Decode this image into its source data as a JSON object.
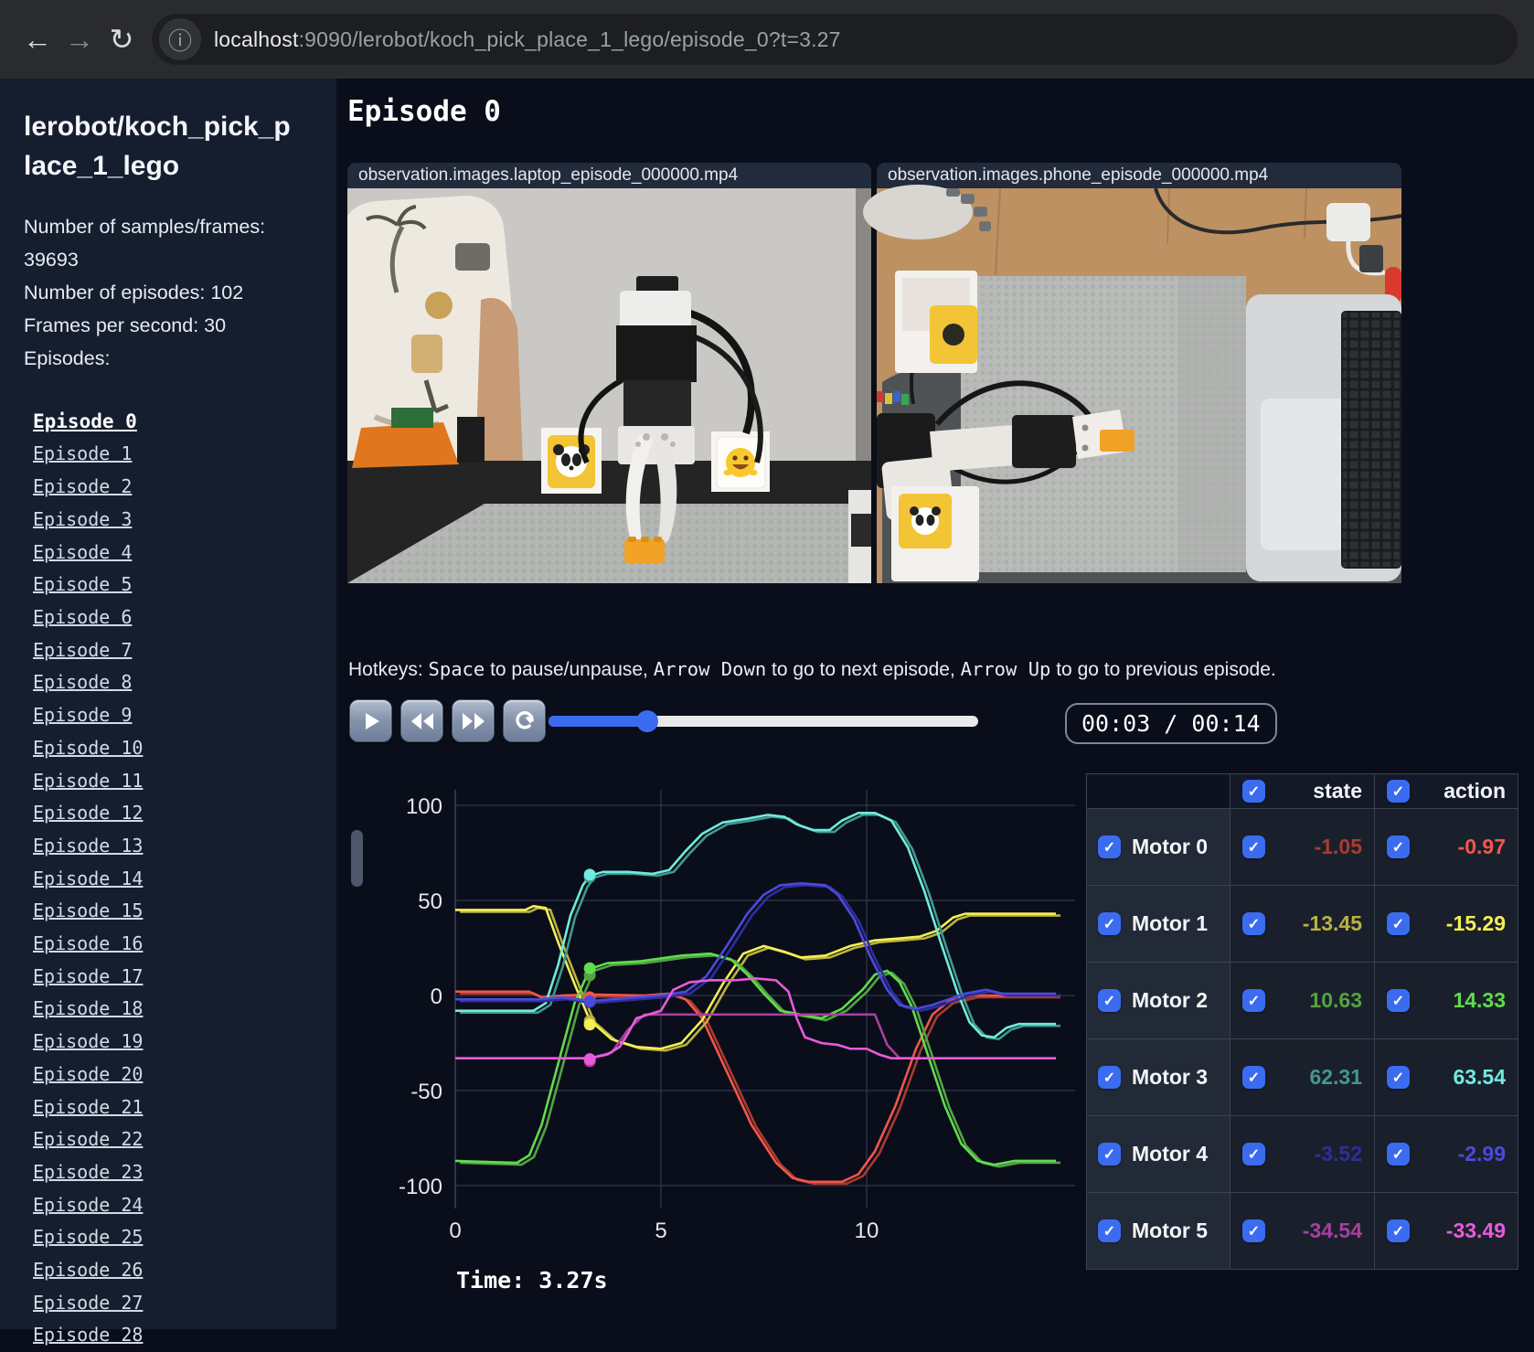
{
  "browser": {
    "url_host": "localhost",
    "url_rest": ":9090/lerobot/koch_pick_place_1_lego/episode_0?t=3.27",
    "info_icon": "ⓘ",
    "back_icon": "←",
    "forward_icon": "→",
    "refresh_icon": "↻"
  },
  "sidebar": {
    "title": "lerobot/koch_pick_place_1_lego",
    "meta_line_1": "Number of samples/frames: 39693",
    "meta_line_2": "Number of episodes: 102",
    "meta_line_3": "Frames per second: 30",
    "episodes_heading": "Episodes:",
    "active_index": 0,
    "episodes": [
      "Episode 0",
      "Episode 1",
      "Episode 2",
      "Episode 3",
      "Episode 4",
      "Episode 5",
      "Episode 6",
      "Episode 7",
      "Episode 8",
      "Episode 9",
      "Episode 10",
      "Episode 11",
      "Episode 12",
      "Episode 13",
      "Episode 14",
      "Episode 15",
      "Episode 16",
      "Episode 17",
      "Episode 18",
      "Episode 19",
      "Episode 20",
      "Episode 21",
      "Episode 22",
      "Episode 23",
      "Episode 24",
      "Episode 25",
      "Episode 26",
      "Episode 27",
      "Episode 28"
    ]
  },
  "main": {
    "title": "Episode 0",
    "videos": [
      {
        "label": "observation.images.laptop_episode_000000.mp4"
      },
      {
        "label": "observation.images.phone_episode_000000.mp4"
      }
    ],
    "hotkeys": {
      "prefix": "Hotkeys: ",
      "key1": "Space",
      "mid1": " to pause/unpause, ",
      "key2": "Arrow Down",
      "mid2": " to go to next episode, ",
      "key3": "Arrow Up",
      "suffix": " to go to previous episode."
    },
    "controls": {
      "buttons": [
        "play",
        "rewind",
        "fast-forward",
        "loop"
      ],
      "time": "00:03 / 00:14",
      "progress_pct": 23
    },
    "time_label": "Time: 3.27s"
  },
  "table": {
    "columns": [
      "state",
      "action"
    ],
    "rows": [
      {
        "label": "Motor 0",
        "state": "-1.05",
        "action": "-0.97",
        "color_state": "#a83b31",
        "color_action": "#f4564b"
      },
      {
        "label": "Motor 1",
        "state": "-13.45",
        "action": "-15.29",
        "color_state": "#bab23f",
        "color_action": "#f5ef55"
      },
      {
        "label": "Motor 2",
        "state": "10.63",
        "action": "14.33",
        "color_state": "#54a244",
        "color_action": "#60dc4d"
      },
      {
        "label": "Motor 3",
        "state": "62.31",
        "action": "63.54",
        "color_state": "#42988e",
        "color_action": "#70ebdf"
      },
      {
        "label": "Motor 4",
        "state": "-3.52",
        "action": "-2.99",
        "color_state": "#2e2e9c",
        "color_action": "#4c4ada"
      },
      {
        "label": "Motor 5",
        "state": "-34.54",
        "action": "-33.49",
        "color_state": "#a73f9f",
        "color_action": "#ea5adb"
      }
    ]
  },
  "chart_data": {
    "type": "line",
    "title": "",
    "xlabel": "",
    "ylabel": "",
    "xlim": [
      0,
      15.1
    ],
    "ylim": [
      -112,
      112
    ],
    "xticks": [
      0,
      5,
      10
    ],
    "yticks": [
      100,
      50,
      0,
      -50,
      -100
    ],
    "grid": true,
    "legend_position": "none",
    "current_time": 3.27,
    "series": [
      {
        "name": "Motor 0",
        "color_state": "#a83b31",
        "color_action": "#f4564b",
        "current_state": -1.05,
        "current_action": -0.97,
        "points": [
          [
            0,
            2
          ],
          [
            1.8,
            2
          ],
          [
            2.1,
            -1
          ],
          [
            2.6,
            0
          ],
          [
            3.27,
            0.5
          ],
          [
            4.6,
            0
          ],
          [
            5.2,
            1
          ],
          [
            5.6,
            -2
          ],
          [
            6.0,
            -12
          ],
          [
            6.6,
            -40
          ],
          [
            7.2,
            -68
          ],
          [
            7.8,
            -88
          ],
          [
            8.2,
            -96
          ],
          [
            8.6,
            -98
          ],
          [
            9.4,
            -98
          ],
          [
            9.8,
            -94
          ],
          [
            10.2,
            -82
          ],
          [
            10.7,
            -58
          ],
          [
            11.2,
            -28
          ],
          [
            11.6,
            -10
          ],
          [
            12.0,
            -3
          ],
          [
            12.6,
            0
          ],
          [
            14.6,
            0
          ]
        ]
      },
      {
        "name": "Motor 1",
        "color_state": "#bab23f",
        "color_action": "#f5ef55",
        "current_state": -13.45,
        "current_action": -15.29,
        "points": [
          [
            0,
            45
          ],
          [
            1.7,
            45
          ],
          [
            1.9,
            47
          ],
          [
            2.2,
            46
          ],
          [
            2.5,
            28
          ],
          [
            2.9,
            6
          ],
          [
            3.27,
            -13
          ],
          [
            3.8,
            -23
          ],
          [
            4.4,
            -27
          ],
          [
            5.0,
            -28
          ],
          [
            5.5,
            -25
          ],
          [
            6.0,
            -13
          ],
          [
            6.5,
            6
          ],
          [
            7.0,
            22
          ],
          [
            7.5,
            26
          ],
          [
            8.0,
            23
          ],
          [
            8.4,
            20
          ],
          [
            9.0,
            21
          ],
          [
            9.6,
            26
          ],
          [
            10.2,
            29
          ],
          [
            10.8,
            30
          ],
          [
            11.3,
            31
          ],
          [
            11.7,
            34
          ],
          [
            12.1,
            41
          ],
          [
            12.4,
            43
          ],
          [
            14.6,
            43
          ]
        ]
      },
      {
        "name": "Motor 2",
        "color_state": "#54a244",
        "color_action": "#60dc4d",
        "current_state": 10.63,
        "current_action": 14.33,
        "points": [
          [
            0,
            -87
          ],
          [
            1.5,
            -88
          ],
          [
            1.8,
            -84
          ],
          [
            2.1,
            -68
          ],
          [
            2.5,
            -36
          ],
          [
            2.9,
            -4
          ],
          [
            3.27,
            14
          ],
          [
            3.7,
            17
          ],
          [
            4.5,
            18
          ],
          [
            5.5,
            21
          ],
          [
            6.2,
            22
          ],
          [
            6.7,
            19
          ],
          [
            7.1,
            11
          ],
          [
            7.5,
            1
          ],
          [
            7.9,
            -8
          ],
          [
            8.4,
            -10
          ],
          [
            8.9,
            -12
          ],
          [
            9.4,
            -7
          ],
          [
            9.9,
            3
          ],
          [
            10.2,
            11
          ],
          [
            10.5,
            13
          ],
          [
            10.8,
            7
          ],
          [
            11.1,
            -6
          ],
          [
            11.5,
            -32
          ],
          [
            11.9,
            -58
          ],
          [
            12.3,
            -78
          ],
          [
            12.7,
            -87
          ],
          [
            13.1,
            -89
          ],
          [
            13.6,
            -87
          ],
          [
            14.6,
            -87
          ]
        ]
      },
      {
        "name": "Motor 3",
        "color_state": "#42988e",
        "color_action": "#70ebdf",
        "current_state": 62.31,
        "current_action": 63.54,
        "points": [
          [
            0,
            -8
          ],
          [
            1.9,
            -8
          ],
          [
            2.2,
            -4
          ],
          [
            2.5,
            16
          ],
          [
            2.8,
            42
          ],
          [
            3.1,
            58
          ],
          [
            3.27,
            63
          ],
          [
            3.6,
            65
          ],
          [
            4.2,
            65
          ],
          [
            4.8,
            64
          ],
          [
            5.2,
            66
          ],
          [
            5.6,
            76
          ],
          [
            6.0,
            85
          ],
          [
            6.5,
            91
          ],
          [
            7.1,
            93
          ],
          [
            7.6,
            95
          ],
          [
            8.0,
            94
          ],
          [
            8.3,
            90
          ],
          [
            8.7,
            87
          ],
          [
            9.1,
            87
          ],
          [
            9.4,
            92
          ],
          [
            9.8,
            96
          ],
          [
            10.2,
            96
          ],
          [
            10.6,
            92
          ],
          [
            11.0,
            78
          ],
          [
            11.4,
            55
          ],
          [
            11.8,
            28
          ],
          [
            12.2,
            2
          ],
          [
            12.5,
            -14
          ],
          [
            12.8,
            -21
          ],
          [
            13.1,
            -22
          ],
          [
            13.4,
            -17
          ],
          [
            13.7,
            -15
          ],
          [
            14.6,
            -15
          ]
        ]
      },
      {
        "name": "Motor 4",
        "color_state": "#2e2e9c",
        "color_action": "#4c4ada",
        "current_state": -3.52,
        "current_action": -2.99,
        "points": [
          [
            0,
            -2
          ],
          [
            2.0,
            -2
          ],
          [
            2.6,
            -1
          ],
          [
            3.27,
            -3
          ],
          [
            3.8,
            -2
          ],
          [
            4.4,
            -1
          ],
          [
            5.0,
            0
          ],
          [
            5.6,
            2
          ],
          [
            6.1,
            10
          ],
          [
            6.6,
            26
          ],
          [
            7.1,
            43
          ],
          [
            7.5,
            53
          ],
          [
            7.9,
            58
          ],
          [
            8.4,
            59
          ],
          [
            9.0,
            58
          ],
          [
            9.3,
            53
          ],
          [
            9.7,
            40
          ],
          [
            10.1,
            20
          ],
          [
            10.5,
            3
          ],
          [
            10.8,
            -5
          ],
          [
            11.2,
            -7
          ],
          [
            11.6,
            -5
          ],
          [
            12.0,
            -2
          ],
          [
            12.4,
            1
          ],
          [
            12.9,
            3
          ],
          [
            13.3,
            1
          ],
          [
            14.6,
            1
          ]
        ]
      },
      {
        "name": "Motor 5",
        "color_state": "#a73f9f",
        "color_action": "#ea5adb",
        "current_state": -34.54,
        "current_action": -33.49,
        "points": [
          [
            0,
            -33
          ],
          [
            3.0,
            -33
          ],
          [
            3.27,
            -33
          ],
          [
            3.7,
            -31
          ],
          [
            4.0,
            -27
          ],
          [
            4.2,
            -20
          ],
          [
            4.4,
            -12
          ],
          [
            4.7,
            -10
          ],
          [
            5.0,
            -8
          ],
          [
            5.3,
            3
          ],
          [
            5.7,
            7
          ],
          [
            6.2,
            8
          ],
          [
            6.8,
            8
          ],
          [
            7.3,
            9
          ],
          [
            7.8,
            8
          ],
          [
            8.1,
            2
          ],
          [
            8.3,
            -12
          ],
          [
            8.5,
            -22
          ],
          [
            8.9,
            -25
          ],
          [
            9.3,
            -26
          ],
          [
            9.6,
            -28
          ],
          [
            10.0,
            -28
          ],
          [
            10.3,
            -31
          ],
          [
            10.6,
            -33
          ],
          [
            14.6,
            -33
          ]
        ],
        "points_state": [
          [
            0,
            -33
          ],
          [
            3.27,
            -33
          ],
          [
            3.8,
            -30
          ],
          [
            4.2,
            -18
          ],
          [
            4.6,
            -10
          ],
          [
            10.2,
            -10
          ],
          [
            10.5,
            -26
          ],
          [
            10.8,
            -33
          ],
          [
            14.6,
            -33
          ]
        ]
      }
    ]
  },
  "colors": {
    "accent": "#3b6cf0",
    "page_bg": "#0a0e1a",
    "sidebar_bg": "#151e2f",
    "grid_line": "#2a3142"
  }
}
